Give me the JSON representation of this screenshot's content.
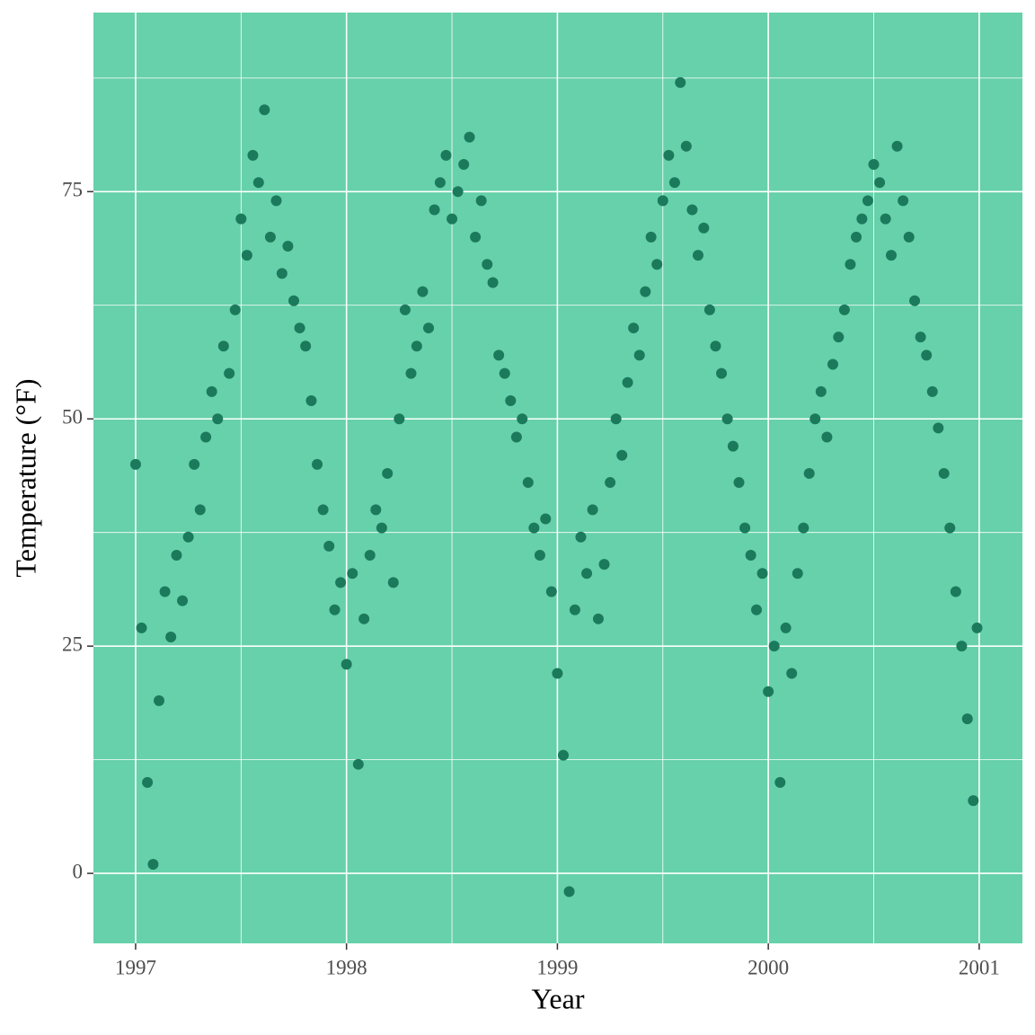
{
  "chart_data": {
    "type": "scatter",
    "x_label": "Year",
    "y_label": "Temperature (°F)",
    "color": "#1b7a5c",
    "background": "#66d1aa",
    "grid": true,
    "xlim": [
      1996.8,
      2001.205
    ],
    "ylim": [
      -7.7,
      94.7
    ],
    "xticks": [
      1997,
      1998,
      1999,
      2000,
      2001
    ],
    "yticks": [
      0,
      25,
      50,
      75
    ],
    "xminor_ticks": [
      1997.5,
      1998.5,
      1999.5,
      2000.5
    ],
    "yminor_ticks": [
      12.5,
      37.5,
      62.5,
      87.5
    ],
    "x": [
      1997,
      1997.028,
      1997.056,
      1997.083,
      1997.111,
      1997.139,
      1997.167,
      1997.194,
      1997.222,
      1997.25,
      1997.278,
      1997.306,
      1997.333,
      1997.361,
      1997.389,
      1997.417,
      1997.444,
      1997.472,
      1997.5,
      1997.528,
      1997.556,
      1997.583,
      1997.611,
      1997.639,
      1997.667,
      1997.694,
      1997.722,
      1997.75,
      1997.778,
      1997.806,
      1997.833,
      1997.861,
      1997.889,
      1997.917,
      1997.944,
      1997.972,
      1998,
      1998.028,
      1998.056,
      1998.083,
      1998.111,
      1998.139,
      1998.167,
      1998.194,
      1998.222,
      1998.25,
      1998.278,
      1998.306,
      1998.333,
      1998.361,
      1998.389,
      1998.417,
      1998.444,
      1998.472,
      1998.5,
      1998.528,
      1998.556,
      1998.583,
      1998.611,
      1998.639,
      1998.667,
      1998.694,
      1998.722,
      1998.75,
      1998.778,
      1998.806,
      1998.833,
      1998.861,
      1998.889,
      1998.917,
      1998.944,
      1998.972,
      1999,
      1999.028,
      1999.056,
      1999.083,
      1999.111,
      1999.139,
      1999.167,
      1999.194,
      1999.222,
      1999.25,
      1999.278,
      1999.306,
      1999.333,
      1999.361,
      1999.389,
      1999.417,
      1999.444,
      1999.472,
      1999.5,
      1999.528,
      1999.556,
      1999.583,
      1999.611,
      1999.639,
      1999.667,
      1999.694,
      1999.722,
      1999.75,
      1999.778,
      1999.806,
      1999.833,
      1999.861,
      1999.889,
      1999.917,
      1999.944,
      1999.972,
      2000,
      2000.028,
      2000.056,
      2000.083,
      2000.111,
      2000.139,
      2000.167,
      2000.194,
      2000.222,
      2000.25,
      2000.278,
      2000.306,
      2000.333,
      2000.361,
      2000.389,
      2000.417,
      2000.444,
      2000.472,
      2000.5,
      2000.528,
      2000.556,
      2000.583,
      2000.611,
      2000.639,
      2000.667,
      2000.694,
      2000.722,
      2000.75,
      2000.778,
      2000.806,
      2000.833,
      2000.861,
      2000.889,
      2000.917,
      2000.944,
      2000.972,
      2000.99
    ],
    "values": [
      45,
      27,
      10,
      1,
      19,
      31,
      26,
      35,
      30,
      37,
      45,
      40,
      48,
      53,
      50,
      58,
      55,
      62,
      72,
      68,
      79,
      76,
      84,
      70,
      74,
      66,
      69,
      63,
      60,
      58,
      52,
      45,
      40,
      36,
      29,
      32,
      23,
      33,
      12,
      28,
      35,
      40,
      38,
      44,
      32,
      50,
      62,
      55,
      58,
      64,
      60,
      73,
      76,
      79,
      72,
      75,
      78,
      81,
      70,
      74,
      67,
      65,
      57,
      55,
      52,
      48,
      50,
      43,
      38,
      35,
      39,
      31,
      22,
      13,
      -2,
      29,
      37,
      33,
      40,
      28,
      34,
      43,
      50,
      46,
      54,
      60,
      57,
      64,
      70,
      67,
      74,
      79,
      76,
      87,
      80,
      73,
      68,
      71,
      62,
      58,
      55,
      50,
      47,
      43,
      38,
      35,
      29,
      33,
      20,
      25,
      10,
      27,
      22,
      33,
      38,
      44,
      50,
      53,
      48,
      56,
      59,
      62,
      67,
      70,
      72,
      74,
      78,
      76,
      72,
      68,
      80,
      74,
      70,
      63,
      59,
      57,
      53,
      49,
      44,
      38,
      31,
      25,
      17,
      8,
      27
    ]
  }
}
